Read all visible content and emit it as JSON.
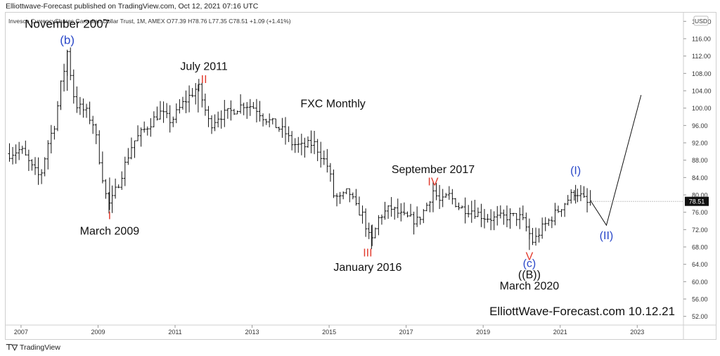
{
  "header": {
    "published": "Elliottwave-Forecast published on TradingView.com, Oct 12, 2021 07:16 UTC"
  },
  "footer": {
    "brand": "TradingView",
    "logo_icon": "tradingview-logo-icon"
  },
  "chart_data": {
    "type": "ohlc-bar",
    "title": "FXC Monthly",
    "legend": "Invesco CurrencyShares Canadian Dollar Trust, 1M, AMEX  O77.39  H78.76  L77.35  C78.51  +1.09 (+1.41%)",
    "watermark": "ElliottWave-Forecast.com 10.12.21",
    "currency": "USD",
    "last_price": "78.51",
    "ylim": [
      50,
      122
    ],
    "xlim": [
      2006.6,
      2024.2
    ],
    "y_ticks": [
      "52.00",
      "56.00",
      "60.00",
      "64.00",
      "68.00",
      "72.00",
      "76.00",
      "80.00",
      "84.00",
      "88.00",
      "92.00",
      "96.00",
      "100.00",
      "104.00",
      "108.00",
      "112.00",
      "116.00",
      "120.00"
    ],
    "x_ticks": [
      "2007",
      "2009",
      "2011",
      "2013",
      "2015",
      "2017",
      "2019",
      "2021",
      "2023"
    ],
    "price_path": [
      [
        2006.7,
        89.5
      ],
      [
        2007.0,
        90.5
      ],
      [
        2007.3,
        86
      ],
      [
        2007.5,
        84
      ],
      [
        2007.7,
        92
      ],
      [
        2007.9,
        97
      ],
      [
        2008.0,
        104
      ],
      [
        2008.1,
        108
      ],
      [
        2008.2,
        113
      ],
      [
        2008.4,
        101
      ],
      [
        2008.7,
        99
      ],
      [
        2008.9,
        96
      ],
      [
        2009.0,
        90
      ],
      [
        2009.2,
        80
      ],
      [
        2009.3,
        77.5
      ],
      [
        2009.5,
        82
      ],
      [
        2009.7,
        87
      ],
      [
        2009.9,
        92
      ],
      [
        2010.3,
        96
      ],
      [
        2010.6,
        99
      ],
      [
        2010.9,
        97
      ],
      [
        2011.2,
        101
      ],
      [
        2011.5,
        104
      ],
      [
        2011.6,
        105
      ],
      [
        2011.8,
        99
      ],
      [
        2011.9,
        96
      ],
      [
        2012.1,
        98
      ],
      [
        2012.4,
        99
      ],
      [
        2012.6,
        100
      ],
      [
        2012.8,
        101
      ],
      [
        2013.1,
        100
      ],
      [
        2013.3,
        98
      ],
      [
        2013.6,
        96
      ],
      [
        2013.9,
        94
      ],
      [
        2014.0,
        92
      ],
      [
        2014.3,
        91
      ],
      [
        2014.6,
        92
      ],
      [
        2014.8,
        89
      ],
      [
        2015.0,
        86
      ],
      [
        2015.1,
        80
      ],
      [
        2015.3,
        79
      ],
      [
        2015.5,
        81
      ],
      [
        2015.7,
        77
      ],
      [
        2015.9,
        75
      ],
      [
        2016.0,
        71
      ],
      [
        2016.1,
        69
      ],
      [
        2016.3,
        75
      ],
      [
        2016.6,
        77
      ],
      [
        2016.9,
        75
      ],
      [
        2017.3,
        74
      ],
      [
        2017.5,
        77
      ],
      [
        2017.7,
        81
      ],
      [
        2017.9,
        78
      ],
      [
        2018.1,
        80
      ],
      [
        2018.4,
        77
      ],
      [
        2018.7,
        76.5
      ],
      [
        2019.0,
        75
      ],
      [
        2019.3,
        74.5
      ],
      [
        2019.6,
        75
      ],
      [
        2019.9,
        75
      ],
      [
        2020.0,
        74.5
      ],
      [
        2020.2,
        71
      ],
      [
        2020.3,
        69
      ],
      [
        2020.5,
        72
      ],
      [
        2020.8,
        75
      ],
      [
        2021.0,
        77
      ],
      [
        2021.2,
        79
      ],
      [
        2021.4,
        81
      ],
      [
        2021.5,
        80
      ],
      [
        2021.7,
        78
      ],
      [
        2021.8,
        78.5
      ]
    ],
    "projection": [
      [
        2021.8,
        78.5
      ],
      [
        2022.2,
        73
      ],
      [
        2023.1,
        103
      ]
    ],
    "annotations": [
      {
        "text": "November 2007",
        "x": 2008.2,
        "y": 118.5,
        "color": "#111111",
        "size": 17
      },
      {
        "text": "(b)",
        "x": 2008.2,
        "y": 114.8,
        "color": "#2a48c9",
        "size": 17
      },
      {
        "text": "July 2011",
        "x": 2011.75,
        "y": 108.8,
        "color": "#111111",
        "size": 16
      },
      {
        "text": "II",
        "x": 2011.75,
        "y": 105.8,
        "color": "#e23b2e",
        "size": 16
      },
      {
        "text": "FXC Monthly",
        "x": 2015.1,
        "y": 100.2,
        "color": "#111111",
        "size": 16
      },
      {
        "text": "I",
        "x": 2009.3,
        "y": 74.4,
        "color": "#e23b2e",
        "size": 16
      },
      {
        "text": "March 2009",
        "x": 2009.3,
        "y": 70.8,
        "color": "#111111",
        "size": 16
      },
      {
        "text": "III",
        "x": 2016.0,
        "y": 65.8,
        "color": "#e23b2e",
        "size": 16
      },
      {
        "text": "January 2016",
        "x": 2016.0,
        "y": 62.5,
        "color": "#111111",
        "size": 16
      },
      {
        "text": "September 2017",
        "x": 2017.7,
        "y": 85.0,
        "color": "#111111",
        "size": 16
      },
      {
        "text": "IV",
        "x": 2017.7,
        "y": 82.2,
        "color": "#e23b2e",
        "size": 16
      },
      {
        "text": "(I)",
        "x": 2021.4,
        "y": 84.8,
        "color": "#2a48c9",
        "size": 16
      },
      {
        "text": "(II)",
        "x": 2022.2,
        "y": 69.8,
        "color": "#2a48c9",
        "size": 16
      },
      {
        "text": "V",
        "x": 2020.2,
        "y": 65.0,
        "color": "#e23b2e",
        "size": 16
      },
      {
        "text": "(c)",
        "x": 2020.2,
        "y": 63.4,
        "color": "#2a48c9",
        "size": 16
      },
      {
        "text": "((B))",
        "x": 2020.2,
        "y": 60.8,
        "color": "#111111",
        "size": 16
      },
      {
        "text": "March 2020",
        "x": 2020.2,
        "y": 58.2,
        "color": "#111111",
        "size": 16
      }
    ]
  }
}
